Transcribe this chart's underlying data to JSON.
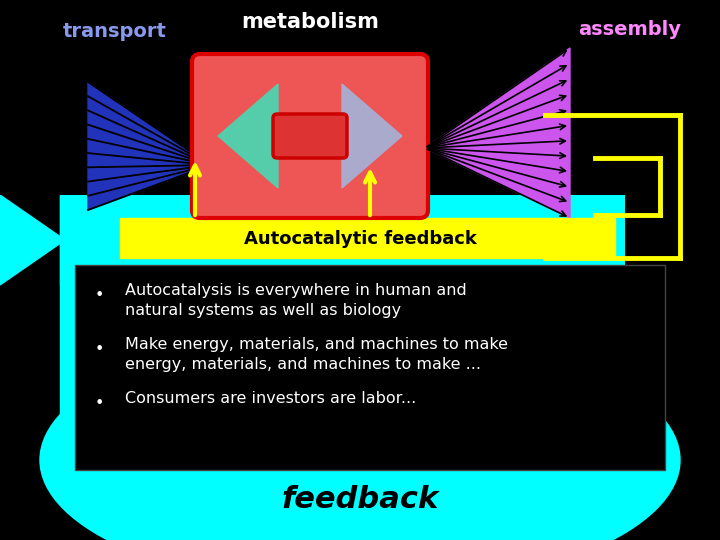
{
  "bg_color": "#000000",
  "cyan_color": "#00ffff",
  "yellow_color": "#ffff00",
  "transport_label": "transport",
  "transport_color": "#7799ee",
  "metabolism_label": "metabolism",
  "metabolism_color": "#ffeeee",
  "assembly_label": "assembly",
  "assembly_color": "#ff88ff",
  "autocatalytic_label": "Autocatalytic feedback",
  "autocatalytic_bg": "#ffff00",
  "autocatalytic_text_color": "#000000",
  "feedback_label": "feedback",
  "bullet1_line1": "Autocatalysis is everywhere in human and",
  "bullet1_line2": "natural systems as well as biology",
  "bullet2_line1": "Make energy, materials, and machines to make",
  "bullet2_line2": "energy, materials, and machines to make ...",
  "bullet3": "Consumers are investors are labor...",
  "bullet_color": "#ffffff",
  "figsize": [
    7.2,
    5.4
  ],
  "dpi": 100
}
